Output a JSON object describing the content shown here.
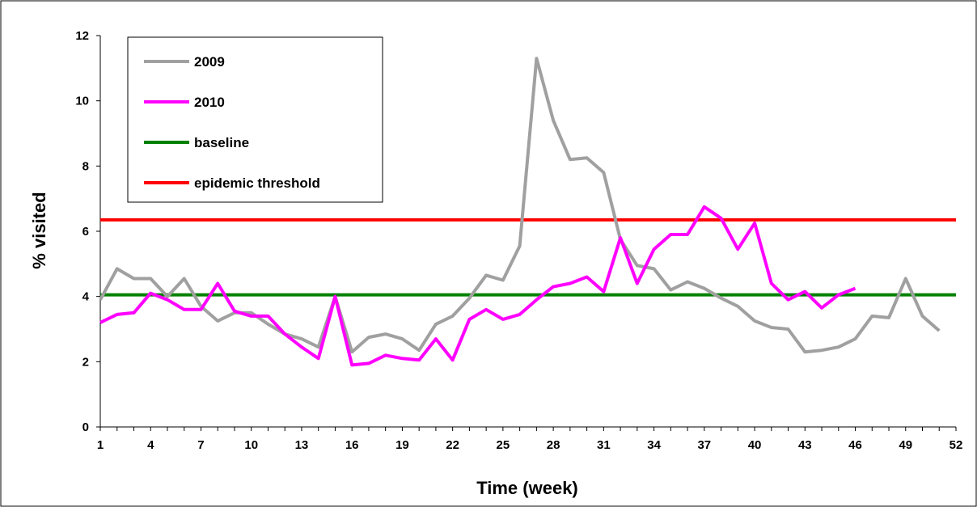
{
  "chart_data": {
    "type": "line",
    "xlabel": "Time (week)",
    "ylabel": "% visited",
    "xlim": [
      1,
      52
    ],
    "ylim": [
      0,
      12
    ],
    "x_ticks": [
      1,
      4,
      7,
      10,
      13,
      16,
      19,
      22,
      25,
      28,
      31,
      34,
      37,
      40,
      43,
      46,
      49,
      52
    ],
    "y_ticks": [
      0,
      2,
      4,
      6,
      8,
      10,
      12
    ],
    "grid": false,
    "legend_position": "top-left",
    "series": [
      {
        "name": "2009",
        "color": "#a0a0a0",
        "x": [
          1,
          2,
          3,
          4,
          5,
          6,
          7,
          8,
          9,
          10,
          11,
          12,
          13,
          14,
          15,
          16,
          17,
          18,
          19,
          20,
          21,
          22,
          23,
          24,
          25,
          26,
          27,
          28,
          29,
          30,
          31,
          32,
          33,
          34,
          35,
          36,
          37,
          38,
          39,
          40,
          41,
          42,
          43,
          44,
          45,
          46,
          47,
          48,
          49,
          50,
          51
        ],
        "y": [
          3.9,
          4.85,
          4.55,
          4.55,
          4.0,
          4.55,
          3.7,
          3.25,
          3.5,
          3.5,
          3.15,
          2.85,
          2.7,
          2.45,
          4.0,
          2.3,
          2.75,
          2.85,
          2.7,
          2.35,
          3.15,
          3.4,
          3.95,
          4.65,
          4.5,
          5.55,
          11.3,
          9.4,
          8.2,
          8.25,
          7.8,
          5.75,
          4.95,
          4.85,
          4.2,
          4.45,
          4.25,
          3.95,
          3.7,
          3.25,
          3.05,
          3.0,
          2.3,
          2.35,
          2.45,
          2.7,
          3.4,
          3.35,
          4.55,
          3.4,
          2.95
        ]
      },
      {
        "name": "2010",
        "color": "#ff00ff",
        "x": [
          1,
          2,
          3,
          4,
          5,
          6,
          7,
          8,
          9,
          10,
          11,
          12,
          13,
          14,
          15,
          16,
          17,
          18,
          19,
          20,
          21,
          22,
          23,
          24,
          25,
          26,
          27,
          28,
          29,
          30,
          31,
          32,
          33,
          34,
          35,
          36,
          37,
          38,
          39,
          40,
          41,
          42,
          43,
          44,
          45,
          46
        ],
        "y": [
          3.2,
          3.45,
          3.5,
          4.1,
          3.9,
          3.6,
          3.6,
          4.4,
          3.55,
          3.4,
          3.4,
          2.85,
          2.45,
          2.1,
          4.0,
          1.9,
          1.95,
          2.2,
          2.1,
          2.05,
          2.7,
          2.05,
          3.3,
          3.6,
          3.3,
          3.45,
          3.9,
          4.3,
          4.4,
          4.6,
          4.15,
          5.8,
          4.4,
          5.45,
          5.9,
          5.9,
          6.75,
          6.4,
          5.45,
          6.25,
          4.4,
          3.9,
          4.15,
          3.65,
          4.05,
          4.25
        ]
      },
      {
        "name": "baseline",
        "color": "#008000",
        "x": [
          1,
          52
        ],
        "y": [
          4.05,
          4.05
        ]
      },
      {
        "name": "epidemic threshold",
        "color": "#ff0000",
        "x": [
          1,
          52
        ],
        "y": [
          6.35,
          6.35
        ]
      }
    ]
  }
}
